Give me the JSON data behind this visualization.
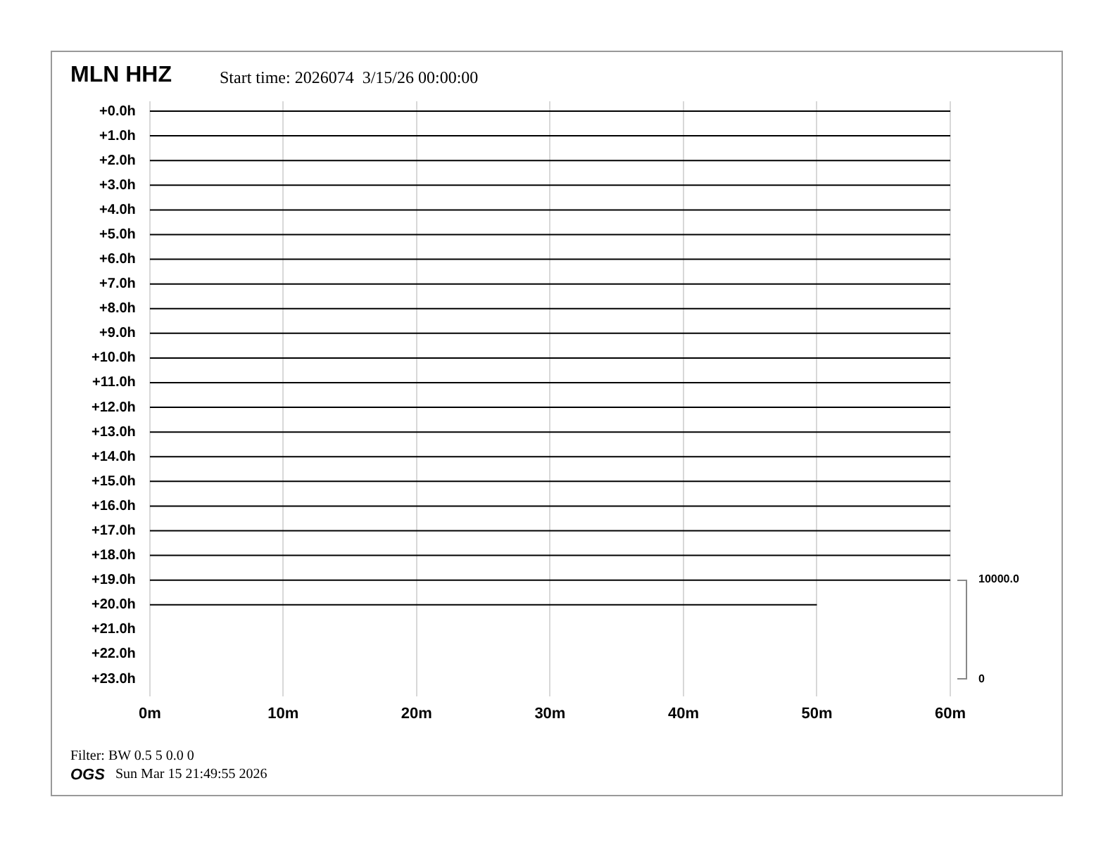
{
  "chart_data": {
    "type": "line",
    "title": "MLN HHZ",
    "subtitle": "Start time: 2026074  3/15/26 00:00:00",
    "xlim": [
      0,
      60
    ],
    "xticks": [
      {
        "value": 0,
        "label": "0m"
      },
      {
        "value": 10,
        "label": "10m"
      },
      {
        "value": 20,
        "label": "20m"
      },
      {
        "value": 30,
        "label": "30m"
      },
      {
        "value": 40,
        "label": "40m"
      },
      {
        "value": 50,
        "label": "50m"
      },
      {
        "value": 60,
        "label": "60m"
      }
    ],
    "ylim": [
      23.7,
      -0.4
    ],
    "yticks": [
      {
        "value": 0,
        "label": "+0.0h"
      },
      {
        "value": 1,
        "label": "+1.0h"
      },
      {
        "value": 2,
        "label": "+2.0h"
      },
      {
        "value": 3,
        "label": "+3.0h"
      },
      {
        "value": 4,
        "label": "+4.0h"
      },
      {
        "value": 5,
        "label": "+5.0h"
      },
      {
        "value": 6,
        "label": "+6.0h"
      },
      {
        "value": 7,
        "label": "+7.0h"
      },
      {
        "value": 8,
        "label": "+8.0h"
      },
      {
        "value": 9,
        "label": "+9.0h"
      },
      {
        "value": 10,
        "label": "+10.0h"
      },
      {
        "value": 11,
        "label": "+11.0h"
      },
      {
        "value": 12,
        "label": "+12.0h"
      },
      {
        "value": 13,
        "label": "+13.0h"
      },
      {
        "value": 14,
        "label": "+14.0h"
      },
      {
        "value": 15,
        "label": "+15.0h"
      },
      {
        "value": 16,
        "label": "+16.0h"
      },
      {
        "value": 17,
        "label": "+17.0h"
      },
      {
        "value": 18,
        "label": "+18.0h"
      },
      {
        "value": 19,
        "label": "+19.0h"
      },
      {
        "value": 20,
        "label": "+20.0h"
      },
      {
        "value": 21,
        "label": "+21.0h"
      },
      {
        "value": 22,
        "label": "+22.0h"
      },
      {
        "value": 23,
        "label": "+23.0h"
      }
    ],
    "grid": "x",
    "marker": "none",
    "line_style": "solid",
    "series": [
      {
        "color": "#000000",
        "x": [
          0,
          60
        ],
        "values": [
          0,
          0
        ]
      },
      {
        "color": "#000000",
        "x": [
          0,
          60
        ],
        "values": [
          1,
          1
        ]
      },
      {
        "color": "#000000",
        "x": [
          0,
          60
        ],
        "values": [
          2,
          2
        ]
      },
      {
        "color": "#000000",
        "x": [
          0,
          60
        ],
        "values": [
          3,
          3
        ]
      },
      {
        "color": "#000000",
        "x": [
          0,
          60
        ],
        "values": [
          4,
          4
        ]
      },
      {
        "color": "#000000",
        "x": [
          0,
          60
        ],
        "values": [
          5,
          5
        ]
      },
      {
        "color": "#000000",
        "x": [
          0,
          60
        ],
        "values": [
          6,
          6
        ]
      },
      {
        "color": "#000000",
        "x": [
          0,
          60
        ],
        "values": [
          7,
          7
        ]
      },
      {
        "color": "#000000",
        "x": [
          0,
          60
        ],
        "values": [
          8,
          8
        ]
      },
      {
        "color": "#000000",
        "x": [
          0,
          60
        ],
        "values": [
          9,
          9
        ]
      },
      {
        "color": "#000000",
        "x": [
          0,
          60
        ],
        "values": [
          10,
          10
        ]
      },
      {
        "color": "#000000",
        "x": [
          0,
          60
        ],
        "values": [
          11,
          11
        ]
      },
      {
        "color": "#000000",
        "x": [
          0,
          60
        ],
        "values": [
          12,
          12
        ]
      },
      {
        "color": "#000000",
        "x": [
          0,
          60
        ],
        "values": [
          13,
          13
        ]
      },
      {
        "color": "#000000",
        "x": [
          0,
          60
        ],
        "values": [
          14,
          14
        ]
      },
      {
        "color": "#000000",
        "x": [
          0,
          60
        ],
        "values": [
          15,
          15
        ]
      },
      {
        "color": "#000000",
        "x": [
          0,
          60
        ],
        "values": [
          16,
          16
        ]
      },
      {
        "color": "#000000",
        "x": [
          0,
          60
        ],
        "values": [
          17,
          17
        ]
      },
      {
        "color": "#000000",
        "x": [
          0,
          60
        ],
        "values": [
          18,
          18
        ]
      },
      {
        "color": "#000000",
        "x": [
          0,
          60
        ],
        "values": [
          19,
          19
        ]
      },
      {
        "color": "#000000",
        "x": [
          0,
          50
        ],
        "values": [
          20,
          20
        ]
      }
    ],
    "annotations": [
      "10000.0",
      "0",
      "Filter: BW 0.5 5 0.0 0",
      "OGS",
      "Sun Mar 15 21:49:55 2026"
    ]
  }
}
